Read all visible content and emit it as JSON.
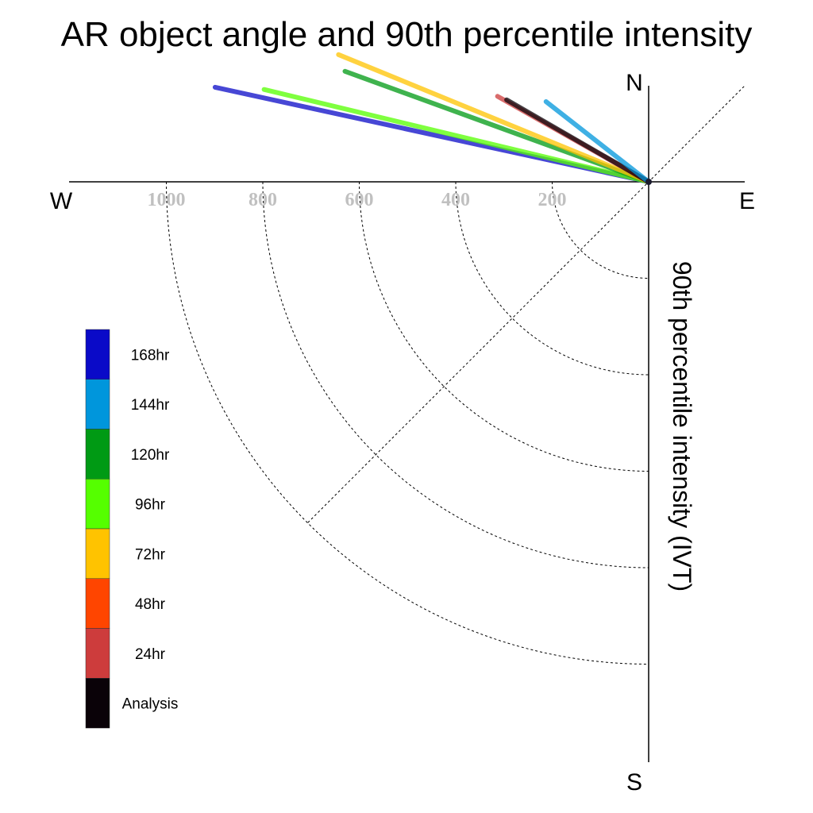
{
  "chart_data": {
    "type": "polar-quarter",
    "title": "AR object angle and 90th percentile intensity",
    "ylabel": "90th percentile intensity (IVT)",
    "compass": {
      "north": "N",
      "south": "S",
      "east": "E",
      "west": "W"
    },
    "radial_range": [
      0,
      1200
    ],
    "radial_ticks": [
      200,
      400,
      600,
      800,
      1000
    ],
    "tick_labels": [
      "200",
      "400",
      "600",
      "800",
      "1000"
    ],
    "grid": true,
    "legend_position": "left",
    "series": [
      {
        "name": "168hr",
        "color": "#0a0ac8",
        "intensity": 920,
        "angle_deg": 167.7
      },
      {
        "name": "96hr",
        "color": "#55ff00",
        "intensity": 820,
        "angle_deg": 166.5
      },
      {
        "name": "120hr",
        "color": "#009a14",
        "intensity": 670,
        "angle_deg": 160.0
      },
      {
        "name": "72hr",
        "color": "#ffc300",
        "intensity": 695,
        "angle_deg": 157.7
      },
      {
        "name": "48hr",
        "color": "#ff4500",
        "intensity": 40,
        "angle_deg": 150.0
      },
      {
        "name": "24hr",
        "color": "#cd3c3c",
        "intensity": 360,
        "angle_deg": 150.5
      },
      {
        "name": "Analysis",
        "color": "#0a0208",
        "intensity": 340,
        "angle_deg": 150.0
      },
      {
        "name": "144hr",
        "color": "#0096dc",
        "intensity": 270,
        "angle_deg": 142.0
      }
    ],
    "legend_order": [
      "168hr",
      "144hr",
      "120hr",
      "96hr",
      "72hr",
      "48hr",
      "24hr",
      "Analysis"
    ]
  }
}
